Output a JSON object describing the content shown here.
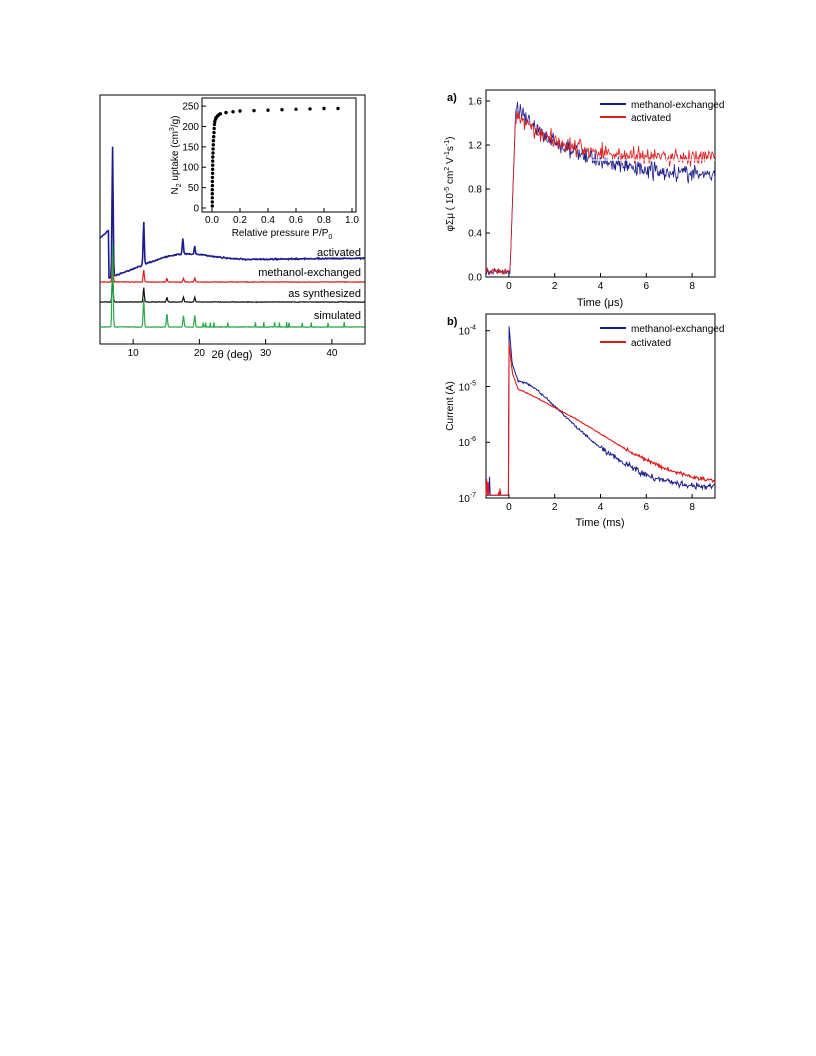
{
  "chart_data": [
    {
      "id": "xrd",
      "type": "line",
      "xlabel": "2θ  (deg)",
      "ylabel": "",
      "xlim": [
        5,
        45
      ],
      "xticks": [
        10,
        20,
        30,
        40
      ],
      "y_axis_tick_labels": false,
      "series": [
        {
          "name": "activated",
          "color": "#1c1c8c",
          "peaks": [
            {
              "x": 6.9,
              "h": 1.0
            },
            {
              "x": 11.6,
              "h": 0.33
            },
            {
              "x": 17.5,
              "h": 0.12
            },
            {
              "x": 19.3,
              "h": 0.06
            }
          ]
        },
        {
          "name": "methanol-exchanged",
          "color": "#e01b1b",
          "peaks": [
            {
              "x": 6.9,
              "h": 0.2
            },
            {
              "x": 11.6,
              "h": 0.1
            },
            {
              "x": 15.1,
              "h": 0.03
            },
            {
              "x": 17.6,
              "h": 0.03
            },
            {
              "x": 19.3,
              "h": 0.03
            }
          ]
        },
        {
          "name": "as synthesized",
          "color": "#111111",
          "peaks": [
            {
              "x": 6.9,
              "h": 0.2
            },
            {
              "x": 11.6,
              "h": 0.12
            },
            {
              "x": 15.1,
              "h": 0.04
            },
            {
              "x": 17.6,
              "h": 0.04
            },
            {
              "x": 19.3,
              "h": 0.04
            }
          ]
        },
        {
          "name": "simulated",
          "color": "#2aa84a",
          "peaks": [
            {
              "x": 6.9,
              "h": 0.36
            },
            {
              "x": 11.6,
              "h": 0.12
            },
            {
              "x": 15.1,
              "h": 0.06
            },
            {
              "x": 17.6,
              "h": 0.05
            },
            {
              "x": 19.3,
              "h": 0.05
            }
          ]
        }
      ],
      "inset": {
        "type": "scatter",
        "xlabel": "Relative pressure P/P",
        "xlabel_sub": "0",
        "ylabel_pre": "N",
        "ylabel_sub": "2",
        "ylabel_mid": " uptake (cm",
        "ylabel_sup": "3",
        "ylabel_post": "/g)",
        "xlim": [
          0,
          1.0
        ],
        "ylim": [
          0,
          260
        ],
        "xticks": [
          "0.0",
          "0.2",
          "0.4",
          "0.6",
          "0.8",
          "1.0"
        ],
        "yticks": [
          "0",
          "50",
          "100",
          "150",
          "200",
          "250"
        ],
        "x": [
          0.002,
          0.002,
          0.002,
          0.002,
          0.002,
          0.003,
          0.003,
          0.003,
          0.004,
          0.004,
          0.005,
          0.005,
          0.006,
          0.007,
          0.008,
          0.009,
          0.01,
          0.012,
          0.014,
          0.016,
          0.018,
          0.02,
          0.025,
          0.03,
          0.04,
          0.05,
          0.06,
          0.1,
          0.15,
          0.2,
          0.3,
          0.4,
          0.5,
          0.6,
          0.7,
          0.8,
          0.9
        ],
        "y": [
          5,
          15,
          25,
          35,
          45,
          55,
          65,
          75,
          85,
          95,
          105,
          115,
          125,
          135,
          145,
          155,
          165,
          175,
          185,
          195,
          205,
          212,
          218,
          222,
          226,
          229,
          231,
          234,
          236,
          238,
          239,
          240,
          241,
          242,
          243,
          244,
          244
        ]
      }
    },
    {
      "id": "a",
      "panel_label": "a)",
      "type": "line",
      "xlabel": "Time (μs)",
      "ylabel_pre": "φΣμ ( 10",
      "ylabel_sup1": "-5",
      "ylabel_mid1": " cm",
      "ylabel_sup2": "2",
      "ylabel_mid2": " V",
      "ylabel_sup3": "-1",
      "ylabel_mid3": "s",
      "ylabel_sup4": "-1",
      "ylabel_post": ")",
      "xlim": [
        -1,
        9
      ],
      "ylim": [
        0.0,
        1.7
      ],
      "xticks": [
        "0",
        "2",
        "4",
        "6",
        "8"
      ],
      "yticks": [
        "0.0",
        "0.4",
        "0.8",
        "1.2",
        "1.6"
      ],
      "legend": "top-right",
      "series": [
        {
          "name": "methanol-exchanged",
          "color": "#1c1c8c",
          "peak": 1.55,
          "plateau": 1.02,
          "tau": 2.0,
          "noise": 0.12
        },
        {
          "name": "activated",
          "color": "#e01b1b",
          "peak": 1.5,
          "plateau": 1.08,
          "tau": 1.8,
          "noise": 0.12
        }
      ]
    },
    {
      "id": "b",
      "panel_label": "b)",
      "type": "line",
      "yscale": "log",
      "xlabel": "Time (ms)",
      "ylabel": "Current (A)",
      "xlim": [
        -1,
        9
      ],
      "ylim_exp": [
        -7,
        -3.7
      ],
      "xticks": [
        "0",
        "2",
        "4",
        "6",
        "8"
      ],
      "yticks": [
        {
          "base": "10",
          "exp": "-4",
          "e": -4
        },
        {
          "base": "10",
          "exp": "-5",
          "e": -5
        },
        {
          "base": "10",
          "exp": "-6",
          "e": -6
        },
        {
          "base": "10",
          "exp": "-7",
          "e": -7
        }
      ],
      "legend": "top-right",
      "series": [
        {
          "name": "methanol-exchanged",
          "color": "#1c1c8c",
          "points": [
            [
              0.0,
              -3.9
            ],
            [
              0.15,
              -4.6
            ],
            [
              0.4,
              -4.9
            ],
            [
              0.8,
              -4.95
            ],
            [
              1.2,
              -5.05
            ],
            [
              2.0,
              -5.35
            ],
            [
              3.0,
              -5.75
            ],
            [
              4.0,
              -6.1
            ],
            [
              5.0,
              -6.35
            ],
            [
              6.0,
              -6.6
            ],
            [
              7.0,
              -6.7
            ],
            [
              8.0,
              -6.78
            ],
            [
              9.0,
              -6.8
            ]
          ]
        },
        {
          "name": "activated",
          "color": "#e01b1b",
          "points": [
            [
              0.0,
              -4.2
            ],
            [
              0.15,
              -4.75
            ],
            [
              0.4,
              -5.05
            ],
            [
              0.8,
              -5.12
            ],
            [
              1.2,
              -5.2
            ],
            [
              2.0,
              -5.38
            ],
            [
              3.0,
              -5.6
            ],
            [
              4.0,
              -5.85
            ],
            [
              5.0,
              -6.1
            ],
            [
              6.0,
              -6.32
            ],
            [
              7.0,
              -6.5
            ],
            [
              8.0,
              -6.62
            ],
            [
              9.0,
              -6.7
            ]
          ]
        }
      ]
    }
  ]
}
